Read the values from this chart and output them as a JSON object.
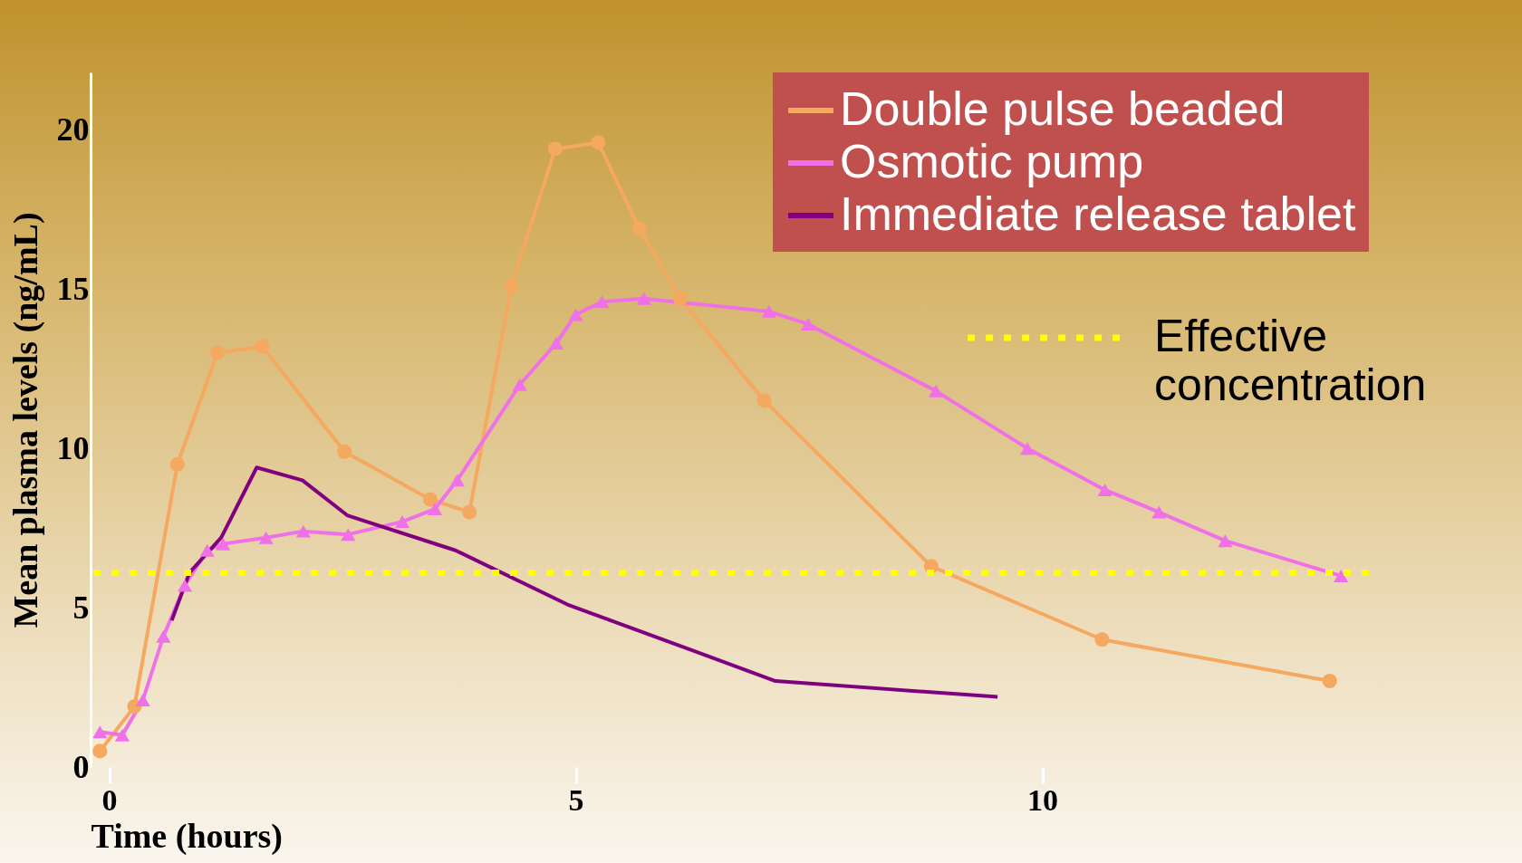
{
  "chart_data": {
    "type": "line",
    "xlabel": "Time (hours)",
    "ylabel": "Mean plasma levels (ng/mL)",
    "xlim": [
      -0.2,
      13.5
    ],
    "ylim": [
      0,
      21.8
    ],
    "xticks": [
      0,
      5,
      10
    ],
    "yticks": [
      0,
      5,
      10,
      15,
      20
    ],
    "grid": false,
    "legend": "top right",
    "line_style": "solid",
    "series": [
      {
        "name": "Double pulse beaded",
        "color": "#f5a860",
        "marker": "circle",
        "x": [
          -0.1,
          0.27,
          0.73,
          1.16,
          1.64,
          2.52,
          3.44,
          3.86,
          4.31,
          4.78,
          5.24,
          5.68,
          6.12,
          7.02,
          8.81,
          10.64,
          13.08
        ],
        "values": [
          0.5,
          1.9,
          9.5,
          13.0,
          13.2,
          9.9,
          8.4,
          8.0,
          15.1,
          19.4,
          19.6,
          16.9,
          14.7,
          11.5,
          6.3,
          4.0,
          2.7
        ]
      },
      {
        "name": "Osmotic pump",
        "color": "#f070e8",
        "marker": "triangle",
        "x": [
          -0.1,
          0.14,
          0.36,
          0.58,
          0.81,
          1.05,
          1.22,
          1.68,
          2.08,
          2.56,
          3.14,
          3.49,
          3.73,
          4.4,
          4.79,
          5.0,
          5.28,
          5.73,
          7.07,
          7.49,
          8.86,
          9.84,
          10.67,
          11.25,
          11.96,
          13.2
        ],
        "values": [
          1.1,
          1.0,
          2.1,
          4.1,
          5.7,
          6.8,
          7.0,
          7.2,
          7.4,
          7.3,
          7.7,
          8.1,
          9.0,
          12.0,
          13.3,
          14.2,
          14.6,
          14.7,
          14.3,
          13.9,
          11.8,
          10.0,
          8.7,
          8.0,
          7.1,
          6.0
        ]
      },
      {
        "name": "Immediate release tablet",
        "color": "#800080",
        "marker": "none",
        "x": [
          0.67,
          0.86,
          1.2,
          1.58,
          2.07,
          2.55,
          3.71,
          4.91,
          7.14,
          9.52
        ],
        "values": [
          4.6,
          6.1,
          7.2,
          9.4,
          9.0,
          7.9,
          6.8,
          5.1,
          2.7,
          2.2
        ]
      }
    ],
    "ref_lines": [
      {
        "axis": "y",
        "value": 6.1,
        "label": "Effective concentration",
        "color": "#ffff00",
        "line_style": "dotted"
      }
    ]
  }
}
